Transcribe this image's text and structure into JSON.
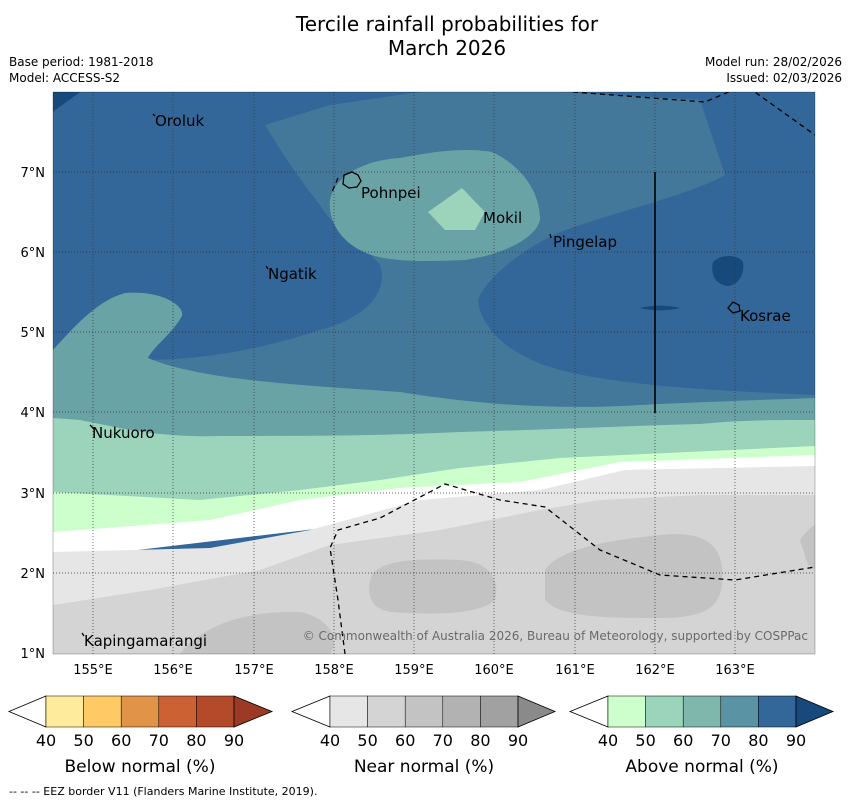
{
  "title": {
    "line1": "Tercile rainfall probabilities for",
    "line2": "March 2026"
  },
  "meta": {
    "base_period": "Base period: 1981-2018",
    "model": "Model: ACCESS-S2",
    "model_run": "Model run: 28/02/2026",
    "issued": "Issued: 02/03/2026"
  },
  "map": {
    "lon_ticks": [
      "155°E",
      "156°E",
      "157°E",
      "158°E",
      "159°E",
      "160°E",
      "161°E",
      "162°E",
      "163°E"
    ],
    "lat_ticks": [
      "7°N",
      "6°N",
      "5°N",
      "4°N",
      "3°N",
      "2°N",
      "1°N"
    ],
    "places": [
      {
        "name": "Oroluk"
      },
      {
        "name": "Pohnpei"
      },
      {
        "name": "Mokil"
      },
      {
        "name": "Pingelap"
      },
      {
        "name": "Ngatik"
      },
      {
        "name": "Kosrae"
      },
      {
        "name": "Nukuoro"
      },
      {
        "name": "Kapingamarangi"
      }
    ],
    "copyright": "© Commonwealth of Australia 2026, Bureau of Meteorology, supported by COSPPac"
  },
  "colorbars": [
    {
      "title": "Below normal (%)",
      "labels": [
        "40",
        "50",
        "60",
        "70",
        "80",
        "90"
      ],
      "colors": [
        "#ffffff",
        "#ffeb9c",
        "#fdca65",
        "#e19448",
        "#cc6233",
        "#b34b2a",
        "#9c3a25"
      ]
    },
    {
      "title": "Near normal (%)",
      "labels": [
        "40",
        "50",
        "60",
        "70",
        "80",
        "90"
      ],
      "colors": [
        "#ffffff",
        "#e6e6e6",
        "#d4d4d4",
        "#c3c3c3",
        "#b2b2b2",
        "#a1a1a1",
        "#8a8a8a"
      ]
    },
    {
      "title": "Above normal (%)",
      "labels": [
        "40",
        "50",
        "60",
        "70",
        "80",
        "90"
      ],
      "colors": [
        "#ffffff",
        "#ccffcc",
        "#9bd3bb",
        "#80b7ad",
        "#5a93a3",
        "#336699",
        "#17497d"
      ]
    }
  ],
  "footer": "-- -- -- EEZ border V11 (Flanders Marine Institute, 2019)."
}
